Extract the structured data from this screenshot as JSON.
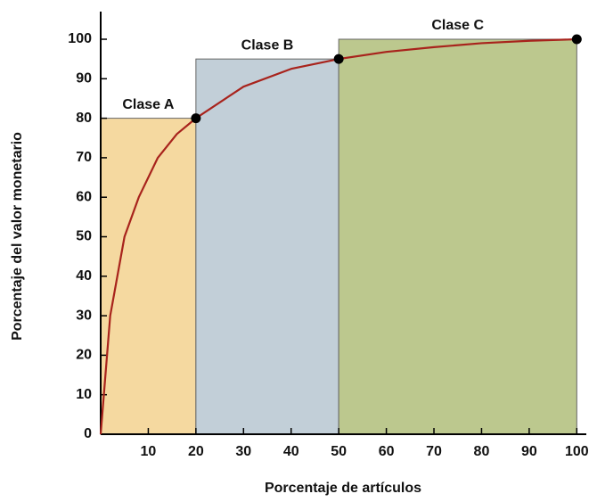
{
  "chart_data": {
    "type": "line",
    "x_label": "Porcentaje de artículos",
    "y_label": "Porcentaje del valor monetario",
    "x": [
      0,
      2,
      5,
      8,
      12,
      16,
      20,
      30,
      40,
      50,
      60,
      70,
      80,
      90,
      100
    ],
    "series": [
      {
        "color": "#a8231c",
        "values": [
          0,
          30,
          50,
          60,
          70,
          76,
          80,
          88,
          92.5,
          95,
          96.8,
          98,
          99,
          99.6,
          100
        ]
      }
    ],
    "markers": {
      "color": "#000000",
      "x": [
        20,
        50,
        100
      ],
      "values": [
        80,
        95,
        100
      ]
    },
    "regions": [
      {
        "label": "Clase A",
        "x": [
          0,
          20
        ],
        "value": 80,
        "color": "#f5d9a0"
      },
      {
        "label": "Clase B",
        "x": [
          20,
          50
        ],
        "value": 95,
        "color": "#c2cfd8"
      },
      {
        "label": "Clase C",
        "x": [
          50,
          100
        ],
        "value": 100,
        "color": "#bcc88e"
      }
    ],
    "xlim": [
      0,
      102
    ],
    "ylim": [
      0,
      107
    ],
    "xticks": [
      10,
      20,
      30,
      40,
      50,
      60,
      70,
      80,
      90,
      100
    ],
    "yticks": [
      0,
      10,
      20,
      30,
      40,
      50,
      60,
      70,
      80,
      90,
      100
    ]
  }
}
